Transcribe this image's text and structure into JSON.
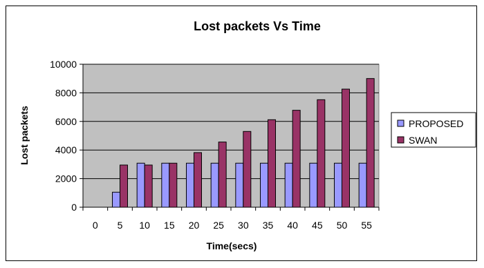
{
  "chart_data": {
    "type": "bar",
    "title": "Lost packets Vs Time",
    "xlabel": "Time(secs)",
    "ylabel": "Lost packets",
    "categories": [
      "0",
      "5",
      "10",
      "15",
      "20",
      "25",
      "30",
      "35",
      "40",
      "45",
      "50",
      "55"
    ],
    "series": [
      {
        "name": "PROPOSED",
        "color": "#9999ff",
        "values": [
          0,
          1050,
          3080,
          3080,
          3080,
          3080,
          3080,
          3080,
          3080,
          3080,
          3080,
          3080
        ]
      },
      {
        "name": "SWAN",
        "color": "#993366",
        "values": [
          0,
          2950,
          2950,
          3080,
          3820,
          4560,
          5300,
          6120,
          6780,
          7520,
          8260,
          9000
        ]
      }
    ],
    "ylim": [
      0,
      10000
    ],
    "yticks": [
      0,
      2000,
      4000,
      6000,
      8000,
      10000
    ],
    "plot_background": "#c0c0c0",
    "grid": true,
    "legend": "right"
  }
}
